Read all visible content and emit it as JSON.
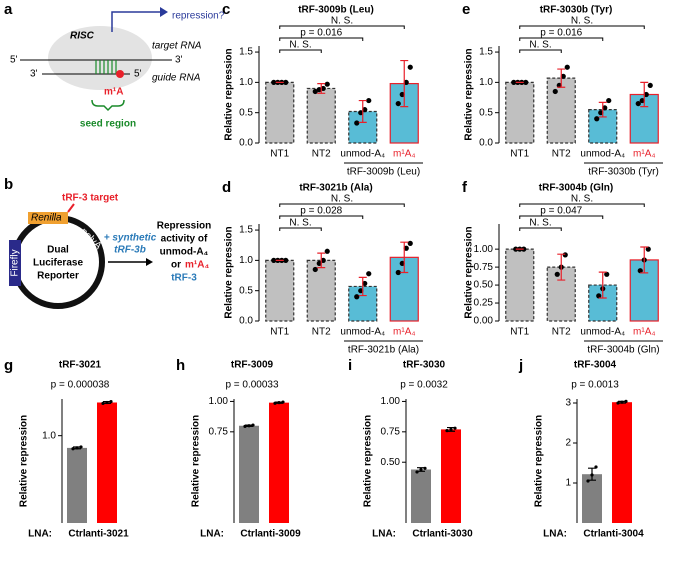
{
  "panel_labels": [
    "a",
    "b",
    "c",
    "d",
    "e",
    "f",
    "g",
    "h",
    "i",
    "j"
  ],
  "diagram_a": {
    "arrow_label": "repression?",
    "complex": "RISC",
    "target": "target RNA",
    "guide": "guide RNA",
    "ends": [
      "5'",
      "3'",
      "3'",
      "5'"
    ],
    "modification": "m¹A",
    "seed": "seed region"
  },
  "diagram_b": {
    "target": "tRF-3 target",
    "renilla": "Renilla",
    "polya": "polyA",
    "firefly": "Firefly",
    "reporter": [
      "Dual",
      "Luciferase",
      "Reporter"
    ],
    "added": [
      "+ synthetic",
      "tRF-3b"
    ],
    "readout": [
      "Repression",
      "activity of",
      "unmod-A₄"
    ],
    "readout_or": "or",
    "readout_mod": "m¹A₄",
    "readout_end": "tRF-3"
  },
  "chart_data": [
    {
      "type": "bar",
      "title": "tRF-3009b (Leu)",
      "ylabel": "Relative repression",
      "categories": [
        "NT1",
        "NT2",
        "unmod-A₄",
        "m¹A₄"
      ],
      "category_colors": [
        "#000000",
        "#000000",
        "#000000",
        "#e8202a"
      ],
      "values": [
        1.0,
        0.9,
        0.52,
        0.98
      ],
      "errors": [
        0,
        0.08,
        0.18,
        0.38
      ],
      "points": [
        [
          1,
          1,
          1,
          1
        ],
        [
          0.85,
          0.88,
          0.9,
          0.97
        ],
        [
          0.33,
          0.5,
          0.55,
          0.7
        ],
        [
          0.65,
          0.8,
          1.0,
          1.25
        ]
      ],
      "colors": [
        "#c0c0c0",
        "#c0c0c0",
        "#58bcd6",
        "#58bcd6"
      ],
      "edge_colors": [
        "#333333",
        "#333333",
        "#333333",
        "#e8202a"
      ],
      "edge_styles": [
        "dashed",
        "dashed",
        "dashed",
        "solid"
      ],
      "error_color": "#e8202a",
      "ylim": [
        0,
        1.6
      ],
      "yticks": [
        {
          "value": 0,
          "label": "0.0"
        },
        0.5,
        {
          "value": 1,
          "label": "1.0"
        },
        1.5
      ],
      "comparisons": [
        {
          "between": [
            0,
            1
          ],
          "label": "N. S."
        },
        {
          "between": [
            0,
            2
          ],
          "label": "p = 0.016"
        },
        {
          "between": [
            0,
            3
          ],
          "label": "N. S."
        }
      ],
      "group_label": "tRF-3009b (Leu)"
    },
    {
      "type": "bar",
      "title": "tRF-3021b (Ala)",
      "ylabel": "Relative repression",
      "categories": [
        "NT1",
        "NT2",
        "unmod-A₄",
        "m¹A₄"
      ],
      "category_colors": [
        "#000000",
        "#000000",
        "#000000",
        "#e8202a"
      ],
      "values": [
        1.0,
        1.0,
        0.57,
        1.05
      ],
      "errors": [
        0,
        0.12,
        0.15,
        0.25
      ],
      "points": [
        [
          1,
          1,
          1,
          1
        ],
        [
          0.85,
          0.95,
          1.0,
          1.15
        ],
        [
          0.4,
          0.5,
          0.62,
          0.78
        ],
        [
          0.8,
          0.95,
          1.2,
          1.28
        ]
      ],
      "colors": [
        "#c0c0c0",
        "#c0c0c0",
        "#58bcd6",
        "#58bcd6"
      ],
      "edge_colors": [
        "#333333",
        "#333333",
        "#333333",
        "#e8202a"
      ],
      "edge_styles": [
        "dashed",
        "dashed",
        "dashed",
        "solid"
      ],
      "error_color": "#e8202a",
      "ylim": [
        0,
        1.6
      ],
      "yticks": [
        {
          "value": 0,
          "label": "0.0"
        },
        0.5,
        {
          "value": 1,
          "label": "1.0"
        },
        1.5
      ],
      "comparisons": [
        {
          "between": [
            0,
            1
          ],
          "label": "N. S."
        },
        {
          "between": [
            0,
            2
          ],
          "label": "p = 0.028"
        },
        {
          "between": [
            0,
            3
          ],
          "label": "N. S."
        }
      ],
      "group_label": "tRF-3021b (Ala)"
    },
    {
      "type": "bar",
      "title": "tRF-3030b (Tyr)",
      "ylabel": "Relative repression",
      "categories": [
        "NT1",
        "NT2",
        "unmod-A₄",
        "m¹A₄"
      ],
      "category_colors": [
        "#000000",
        "#000000",
        "#000000",
        "#e8202a"
      ],
      "values": [
        1.0,
        1.07,
        0.55,
        0.8
      ],
      "errors": [
        0,
        0.15,
        0.12,
        0.2
      ],
      "points": [
        [
          1,
          1,
          1,
          1
        ],
        [
          0.85,
          0.95,
          1.1,
          1.25
        ],
        [
          0.4,
          0.5,
          0.58,
          0.7
        ],
        [
          0.65,
          0.7,
          0.8,
          0.95
        ]
      ],
      "colors": [
        "#c0c0c0",
        "#c0c0c0",
        "#58bcd6",
        "#58bcd6"
      ],
      "edge_colors": [
        "#333333",
        "#333333",
        "#333333",
        "#e8202a"
      ],
      "edge_styles": [
        "dashed",
        "dashed",
        "dashed",
        "solid"
      ],
      "error_color": "#e8202a",
      "ylim": [
        0,
        1.6
      ],
      "yticks": [
        {
          "value": 0,
          "label": "0.0"
        },
        0.5,
        {
          "value": 1,
          "label": "1.0"
        },
        1.5
      ],
      "comparisons": [
        {
          "between": [
            0,
            1
          ],
          "label": "N. S."
        },
        {
          "between": [
            0,
            2
          ],
          "label": "p = 0.016"
        },
        {
          "between": [
            0,
            3
          ],
          "label": "N. S."
        }
      ],
      "group_label": "tRF-3030b (Tyr)"
    },
    {
      "type": "bar",
      "title": "tRF-3004b (Gln)",
      "ylabel": "Relative repression",
      "categories": [
        "NT1",
        "NT2",
        "unmod-A₄",
        "m¹A₄"
      ],
      "category_colors": [
        "#000000",
        "#000000",
        "#000000",
        "#e8202a"
      ],
      "values": [
        1.0,
        0.75,
        0.5,
        0.85
      ],
      "errors": [
        0,
        0.18,
        0.18,
        0.18
      ],
      "points": [
        [
          1,
          1,
          1
        ],
        [
          0.65,
          0.75,
          0.92
        ],
        [
          0.35,
          0.45,
          0.65
        ],
        [
          0.7,
          0.85,
          1.0
        ]
      ],
      "colors": [
        "#c0c0c0",
        "#c0c0c0",
        "#58bcd6",
        "#58bcd6"
      ],
      "edge_colors": [
        "#333333",
        "#333333",
        "#333333",
        "#e8202a"
      ],
      "edge_styles": [
        "dashed",
        "dashed",
        "dashed",
        "solid"
      ],
      "error_color": "#e8202a",
      "ylim": [
        0,
        1.35
      ],
      "yticks": [
        {
          "value": 0,
          "label": "0.00"
        },
        0.25,
        {
          "value": 0.5,
          "label": "0.50"
        },
        0.75,
        {
          "value": 1,
          "label": "1.00"
        }
      ],
      "comparisons": [
        {
          "between": [
            0,
            1
          ],
          "label": "N. S."
        },
        {
          "between": [
            0,
            2
          ],
          "label": "p = 0.047"
        },
        {
          "between": [
            0,
            3
          ],
          "label": "N. S."
        }
      ],
      "group_label": "tRF-3004b (Gln)"
    },
    {
      "type": "bar",
      "title": "tRF-3021",
      "subtitle": "p = 0.000038",
      "ylabel": "Relative repression",
      "axis_prefix": "LNA:",
      "categories": [
        "Ctrl",
        "anti-3021"
      ],
      "values": [
        0.86,
        1.38
      ],
      "errors": [
        0.01,
        0.01
      ],
      "points": [
        [
          0.85,
          0.86,
          0.87
        ],
        [
          1.37,
          1.38,
          1.39
        ]
      ],
      "colors": [
        "#808080",
        "#ff0000"
      ],
      "ylim": [
        0,
        1.42
      ],
      "yticks": [
        {
          "value": 1,
          "label": "1.0"
        }
      ]
    },
    {
      "type": "bar",
      "title": "tRF-3009",
      "subtitle": "p = 0.00033",
      "ylabel": "Relative repression",
      "axis_prefix": "LNA:",
      "categories": [
        "Ctrl",
        "anti-3009"
      ],
      "values": [
        0.8,
        0.99
      ],
      "errors": [
        0.005,
        0.005
      ],
      "points": [
        [
          0.795,
          0.8,
          0.805
        ],
        [
          0.985,
          0.99,
          0.995
        ]
      ],
      "colors": [
        "#808080",
        "#ff0000"
      ],
      "ylim": [
        0,
        1.02
      ],
      "yticks": [
        0.75,
        {
          "value": 1,
          "label": "1.00"
        }
      ]
    },
    {
      "type": "bar",
      "title": "tRF-3030",
      "subtitle": "p = 0.0032",
      "ylabel": "Relative repression",
      "axis_prefix": "LNA:",
      "categories": [
        "Ctrl",
        "anti-3030"
      ],
      "values": [
        0.44,
        0.77
      ],
      "errors": [
        0.015,
        0.015
      ],
      "points": [
        [
          0.42,
          0.44,
          0.45
        ],
        [
          0.76,
          0.77,
          0.78
        ]
      ],
      "colors": [
        "#808080",
        "#ff0000"
      ],
      "ylim": [
        0,
        1.02
      ],
      "yticks": [
        {
          "value": 0.5,
          "label": "0.50"
        },
        0.75,
        {
          "value": 1,
          "label": "1.00"
        }
      ]
    },
    {
      "type": "bar",
      "title": "tRF-3004",
      "subtitle": "p = 0.0013",
      "ylabel": "Relative repression",
      "axis_prefix": "LNA:",
      "categories": [
        "Ctrl",
        "anti-3004"
      ],
      "values": [
        1.22,
        3.02
      ],
      "errors": [
        0.15,
        0.02
      ],
      "points": [
        [
          1.05,
          1.2,
          1.4
        ],
        [
          3.0,
          3.02,
          3.04
        ]
      ],
      "colors": [
        "#808080",
        "#ff0000"
      ],
      "ylim": [
        0,
        3.1
      ],
      "yticks": [
        1,
        2,
        3
      ]
    }
  ]
}
